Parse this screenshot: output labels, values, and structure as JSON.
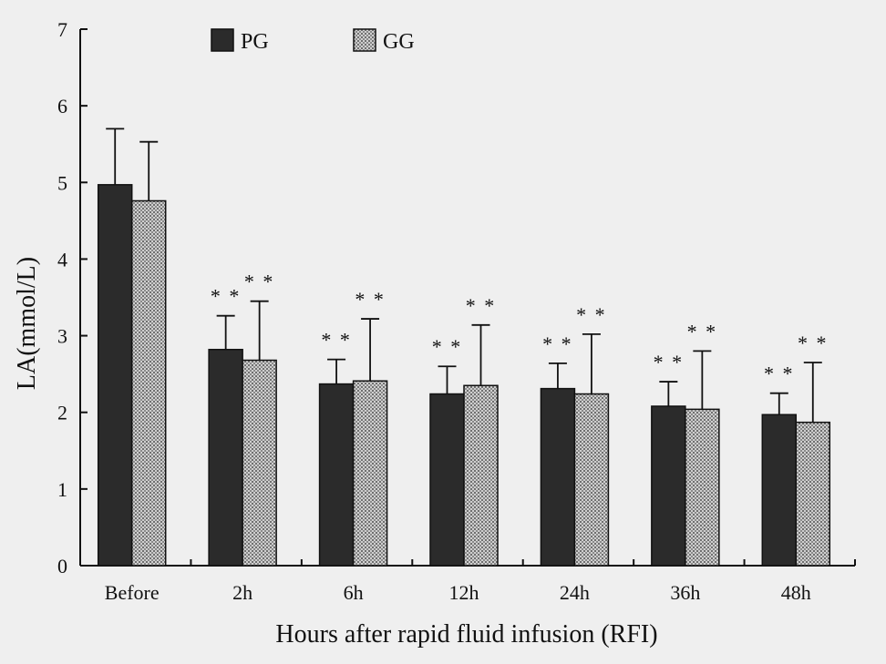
{
  "chart_data": {
    "type": "bar",
    "categories": [
      "Before",
      "2h",
      "6h",
      "12h",
      "24h",
      "36h",
      "48h"
    ],
    "series": [
      {
        "name": "PG",
        "color": "#2b2b2b",
        "pattern": "solid-dark",
        "values": [
          4.97,
          2.82,
          2.37,
          2.24,
          2.31,
          2.08,
          1.97
        ],
        "errors": [
          0.73,
          0.44,
          0.32,
          0.36,
          0.33,
          0.32,
          0.28
        ],
        "significance": [
          "",
          "* *",
          "* *",
          "* *",
          "* *",
          "* *",
          "* *"
        ]
      },
      {
        "name": "GG",
        "color": "#9a9a9a",
        "pattern": "crosshatch",
        "values": [
          4.76,
          2.68,
          2.41,
          2.35,
          2.24,
          2.04,
          1.87
        ],
        "errors": [
          0.77,
          0.77,
          0.81,
          0.79,
          0.78,
          0.76,
          0.78
        ],
        "significance": [
          "",
          "* *",
          "* *",
          "* *",
          "* *",
          "* *",
          "* *"
        ]
      }
    ],
    "xlabel": "Hours after rapid fluid infusion (RFI)",
    "ylabel": "LA(mmol/L)",
    "ylim": [
      0,
      7
    ],
    "yticks": [
      "0",
      "1",
      "2",
      "3",
      "4",
      "5",
      "6",
      "7"
    ],
    "grid": false,
    "legend_position": "top-left"
  }
}
